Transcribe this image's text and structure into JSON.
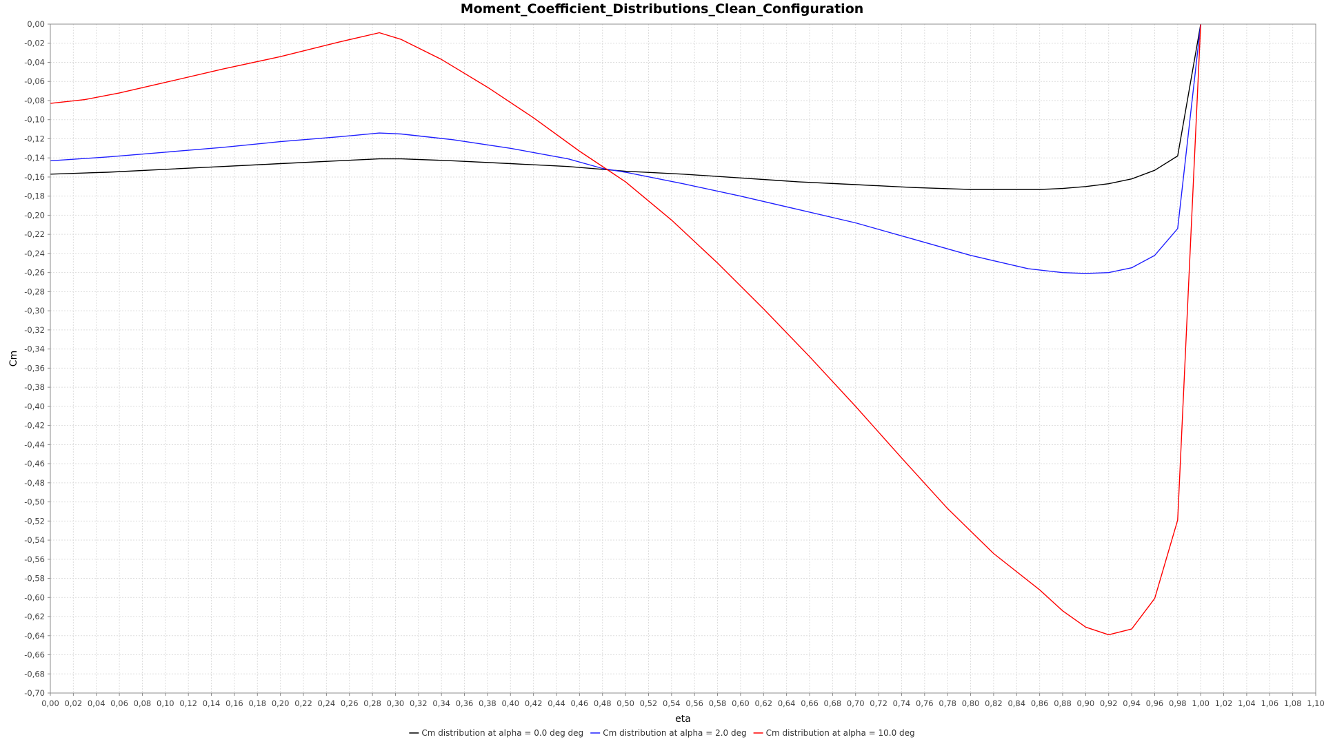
{
  "chart_data": {
    "type": "line",
    "title": "Moment_Coefficient_Distributions_Clean_Configuration",
    "xlabel": "eta",
    "ylabel": "Cm",
    "xlim": [
      0.0,
      1.1
    ],
    "ylim": [
      -0.7,
      0.0
    ],
    "x_tick_step": 0.02,
    "y_tick_step": 0.02,
    "decimal_separator": ",",
    "grid": true,
    "legend_position": "bottom-center",
    "series": [
      {
        "name": "Cm distribution at alpha = 0.0 deg deg",
        "color": "#000000",
        "points": [
          [
            0.0,
            -0.157
          ],
          [
            0.05,
            -0.155
          ],
          [
            0.1,
            -0.152
          ],
          [
            0.15,
            -0.149
          ],
          [
            0.2,
            -0.146
          ],
          [
            0.25,
            -0.143
          ],
          [
            0.286,
            -0.141
          ],
          [
            0.305,
            -0.141
          ],
          [
            0.35,
            -0.143
          ],
          [
            0.4,
            -0.146
          ],
          [
            0.45,
            -0.149
          ],
          [
            0.48,
            -0.152
          ],
          [
            0.5,
            -0.154
          ],
          [
            0.55,
            -0.157
          ],
          [
            0.6,
            -0.161
          ],
          [
            0.65,
            -0.165
          ],
          [
            0.7,
            -0.168
          ],
          [
            0.75,
            -0.171
          ],
          [
            0.8,
            -0.173
          ],
          [
            0.82,
            -0.173
          ],
          [
            0.84,
            -0.173
          ],
          [
            0.86,
            -0.173
          ],
          [
            0.88,
            -0.172
          ],
          [
            0.9,
            -0.17
          ],
          [
            0.92,
            -0.167
          ],
          [
            0.94,
            -0.162
          ],
          [
            0.96,
            -0.153
          ],
          [
            0.98,
            -0.138
          ],
          [
            1.0,
            0.0
          ]
        ]
      },
      {
        "name": "Cm distribution at alpha = 2.0 deg",
        "color": "#1f1fff",
        "points": [
          [
            0.0,
            -0.143
          ],
          [
            0.05,
            -0.139
          ],
          [
            0.1,
            -0.134
          ],
          [
            0.15,
            -0.129
          ],
          [
            0.2,
            -0.123
          ],
          [
            0.25,
            -0.118
          ],
          [
            0.286,
            -0.114
          ],
          [
            0.305,
            -0.115
          ],
          [
            0.35,
            -0.121
          ],
          [
            0.4,
            -0.13
          ],
          [
            0.45,
            -0.141
          ],
          [
            0.48,
            -0.151
          ],
          [
            0.5,
            -0.155
          ],
          [
            0.55,
            -0.167
          ],
          [
            0.6,
            -0.18
          ],
          [
            0.65,
            -0.194
          ],
          [
            0.7,
            -0.208
          ],
          [
            0.75,
            -0.225
          ],
          [
            0.8,
            -0.242
          ],
          [
            0.85,
            -0.256
          ],
          [
            0.88,
            -0.26
          ],
          [
            0.9,
            -0.261
          ],
          [
            0.92,
            -0.26
          ],
          [
            0.94,
            -0.255
          ],
          [
            0.96,
            -0.242
          ],
          [
            0.98,
            -0.214
          ],
          [
            1.0,
            0.0
          ]
        ]
      },
      {
        "name": "Cm distribution at alpha = 10.0 deg",
        "color": "#ff0000",
        "points": [
          [
            0.0,
            -0.083
          ],
          [
            0.03,
            -0.079
          ],
          [
            0.06,
            -0.072
          ],
          [
            0.1,
            -0.061
          ],
          [
            0.15,
            -0.047
          ],
          [
            0.2,
            -0.034
          ],
          [
            0.25,
            -0.019
          ],
          [
            0.286,
            -0.009
          ],
          [
            0.305,
            -0.016
          ],
          [
            0.34,
            -0.037
          ],
          [
            0.38,
            -0.066
          ],
          [
            0.42,
            -0.098
          ],
          [
            0.46,
            -0.133
          ],
          [
            0.5,
            -0.165
          ],
          [
            0.54,
            -0.205
          ],
          [
            0.58,
            -0.25
          ],
          [
            0.62,
            -0.298
          ],
          [
            0.66,
            -0.348
          ],
          [
            0.7,
            -0.4
          ],
          [
            0.74,
            -0.454
          ],
          [
            0.78,
            -0.507
          ],
          [
            0.82,
            -0.554
          ],
          [
            0.86,
            -0.592
          ],
          [
            0.88,
            -0.614
          ],
          [
            0.9,
            -0.631
          ],
          [
            0.92,
            -0.639
          ],
          [
            0.94,
            -0.633
          ],
          [
            0.96,
            -0.601
          ],
          [
            0.98,
            -0.519
          ],
          [
            1.0,
            0.0
          ]
        ]
      }
    ]
  }
}
